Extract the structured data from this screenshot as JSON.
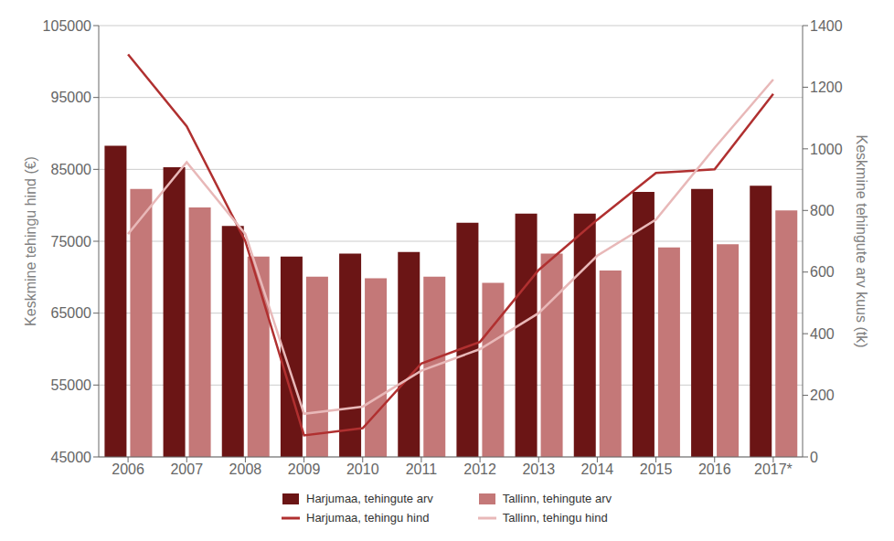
{
  "chart_data": {
    "type": "bar",
    "categories": [
      "2006",
      "2007",
      "2008",
      "2009",
      "2010",
      "2011",
      "2012",
      "2013",
      "2014",
      "2015",
      "2016",
      "2017*"
    ],
    "series": [
      {
        "name": "Harjumaa, tehingute arv",
        "type": "bar",
        "color": "#6b1515",
        "axis": "y2",
        "values": [
          1010,
          940,
          750,
          650,
          660,
          665,
          760,
          790,
          790,
          860,
          870,
          880
        ]
      },
      {
        "name": "Tallinn, tehingute arv",
        "type": "bar",
        "color": "#c47878",
        "axis": "y2",
        "values": [
          870,
          810,
          650,
          585,
          580,
          585,
          565,
          660,
          605,
          680,
          690,
          800
        ]
      },
      {
        "name": "Harjumaa, tehingu hind",
        "type": "line",
        "color": "#b03030",
        "values": [
          101000,
          91000,
          75000,
          48000,
          49000,
          58000,
          61000,
          71000,
          78000,
          84500,
          85000,
          95500
        ]
      },
      {
        "name": "Tallinn, tehingu hind",
        "type": "line",
        "color": "#e8b8b8",
        "values": [
          76000,
          86000,
          76000,
          51000,
          52000,
          57000,
          60000,
          65000,
          73000,
          78000,
          88000,
          97500
        ]
      }
    ],
    "ylabel": "Keskmine tehingu hind (€)",
    "y2label": "Keskmine tehingute arv kuus (tk)",
    "ylim": [
      45000,
      105000
    ],
    "yticks": [
      45000,
      55000,
      65000,
      75000,
      85000,
      95000,
      105000
    ],
    "y2lim": [
      0,
      1400
    ],
    "y2ticks": [
      0,
      200,
      400,
      600,
      800,
      1000,
      1200,
      1400
    ],
    "grid": true,
    "legend": "bottom"
  }
}
